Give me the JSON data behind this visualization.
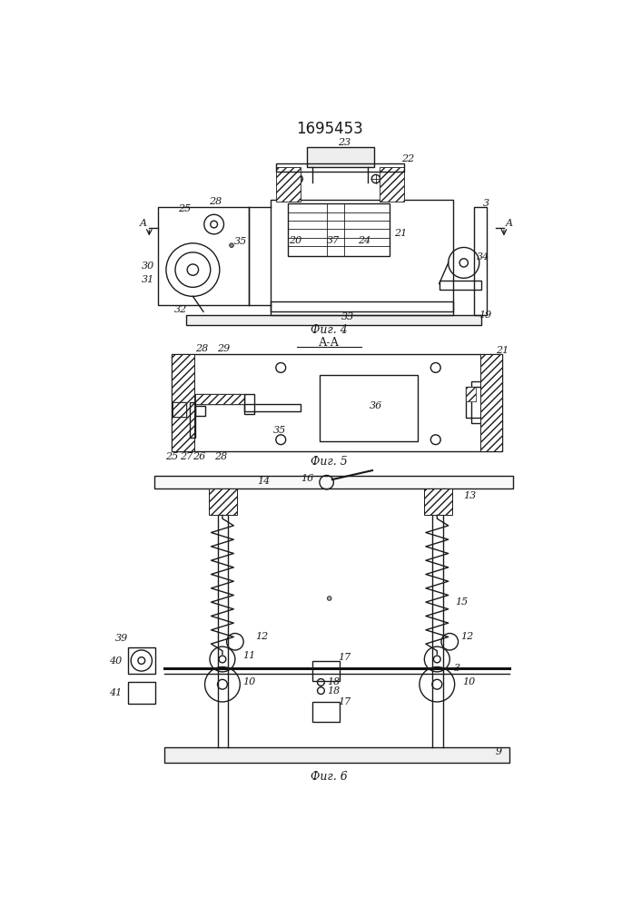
{
  "title": "1695453",
  "bg_color": "#ffffff",
  "line_color": "#1a1a1a",
  "lw": 1.0,
  "tlw": 0.6,
  "fig4_label": "Фиг. 4",
  "fig5_label": "А-А",
  "fig5b_label": "Фиг. 5",
  "fig6_label": "Фиг. 6"
}
